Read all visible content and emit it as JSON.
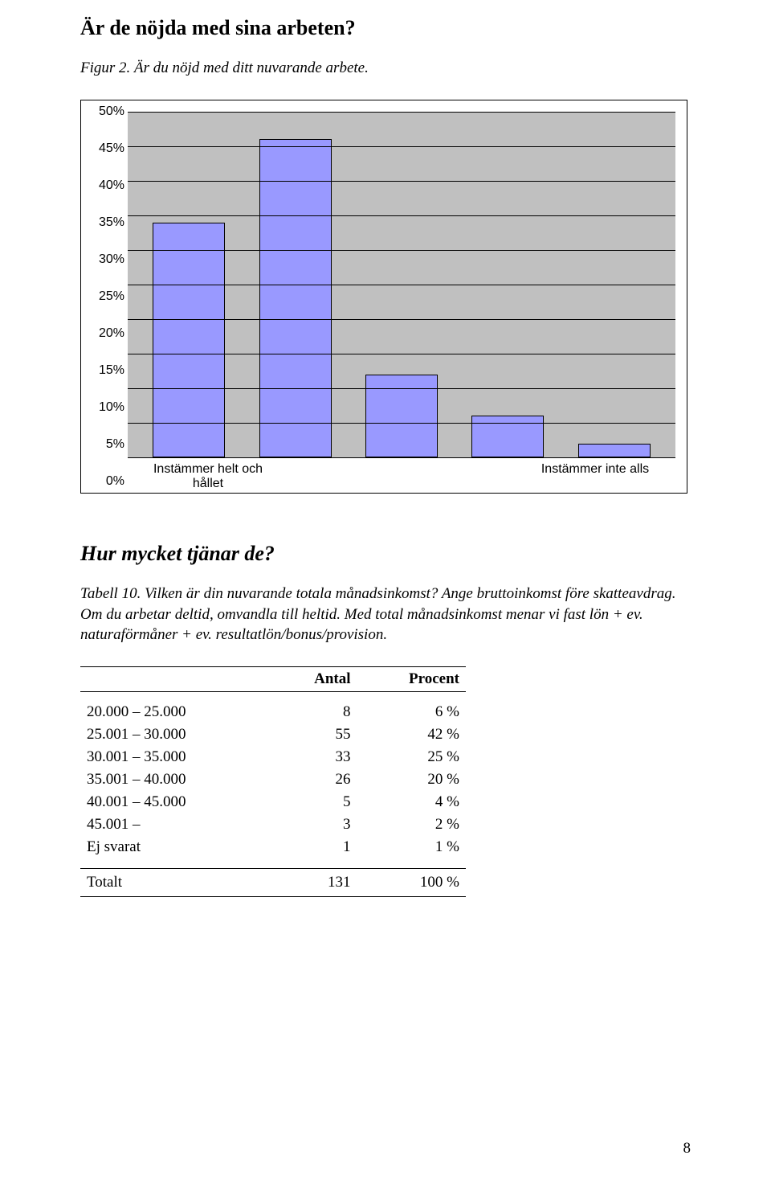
{
  "title1": "Är de nöjda med sina arbeten?",
  "figure_caption": "Figur 2. Är du nöjd med ditt nuvarande arbete.",
  "chart": {
    "type": "bar",
    "ylim": [
      0,
      50
    ],
    "ytick_step": 5,
    "yticks": [
      "0%",
      "5%",
      "10%",
      "15%",
      "20%",
      "25%",
      "30%",
      "35%",
      "40%",
      "45%",
      "50%"
    ],
    "values": [
      34,
      46,
      12,
      6,
      2
    ],
    "bar_color": "#9999ff",
    "bar_border": "#000000",
    "background_color": "#c0c0c0",
    "grid_color": "#000000",
    "xlabel_left_line1": "Instämmer helt och",
    "xlabel_left_line2": "hållet",
    "xlabel_right": "Instämmer inte alls",
    "label_fontsize": 16,
    "label_fontfamily": "Arial"
  },
  "section_title": "Hur mycket tjänar de?",
  "table_caption": "Tabell 10. Vilken är din nuvarande totala månadsinkomst? Ange bruttoinkomst före skatteavdrag. Om du arbetar deltid, omvandla till heltid. Med total månadsinkomst menar vi fast lön + ev. naturaförmåner + ev.  resultatlön/bonus/provision.",
  "table": {
    "columns": [
      "",
      "Antal",
      "Procent"
    ],
    "rows": [
      {
        "label": "20.000 – 25.000",
        "antal": "8",
        "procent": "6 %"
      },
      {
        "label": "25.001 – 30.000",
        "antal": "55",
        "procent": "42 %"
      },
      {
        "label": "30.001 – 35.000",
        "antal": "33",
        "procent": "25 %"
      },
      {
        "label": "35.001 – 40.000",
        "antal": "26",
        "procent": "20 %"
      },
      {
        "label": "40.001 – 45.000",
        "antal": "5",
        "procent": "4 %"
      },
      {
        "label": "45.001 –",
        "antal": "3",
        "procent": "2 %"
      },
      {
        "label": "Ej svarat",
        "antal": "1",
        "procent": "1 %"
      }
    ],
    "total": {
      "label": "Totalt",
      "antal": "131",
      "procent": "100 %"
    }
  },
  "page_number": "8"
}
